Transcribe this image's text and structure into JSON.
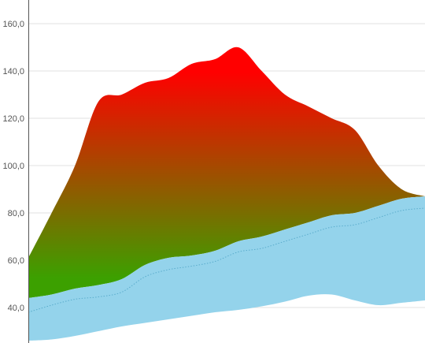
{
  "chart_data": {
    "type": "area",
    "title": "",
    "xlabel": "",
    "ylabel": "",
    "ylim": [
      25,
      170
    ],
    "y_ticks": [
      "40,0",
      "60,0",
      "80,0",
      "100,0",
      "120,0",
      "140,0",
      "160,0"
    ],
    "y_tick_values": [
      40,
      60,
      80,
      100,
      120,
      140,
      160
    ],
    "grid": true,
    "x": [
      0,
      1,
      2,
      3,
      4,
      5,
      6,
      7,
      8,
      9,
      10,
      11,
      12,
      13,
      14,
      15,
      16,
      17
    ],
    "series": [
      {
        "role": "top-area",
        "fill_top": "#ff0000",
        "fill_bottom": "#3ca000",
        "values": [
          61,
          80,
          100,
          127,
          130,
          135,
          137,
          143,
          145,
          150,
          140,
          130,
          125,
          120,
          115,
          100,
          90,
          87
        ]
      },
      {
        "role": "band-upper",
        "fill": "#94d3eb",
        "values": [
          44,
          45.5,
          48,
          49.5,
          52,
          58,
          61,
          62,
          64,
          68,
          70,
          73,
          76,
          79,
          80,
          83,
          86,
          87
        ]
      },
      {
        "role": "band-center",
        "stroke": "#5aaccc",
        "values": [
          38,
          41,
          43.5,
          44.5,
          46.5,
          53,
          56,
          57.5,
          59.5,
          63.5,
          65,
          68,
          71,
          74,
          75,
          78,
          81,
          82
        ]
      },
      {
        "role": "band-lower",
        "values": [
          26,
          26.5,
          28,
          30,
          32,
          33.5,
          35,
          36.5,
          38,
          39,
          40.5,
          42.5,
          45,
          45.5,
          43,
          41,
          42,
          43
        ]
      }
    ],
    "colors": {
      "gradient_top": "#ff0000",
      "gradient_bottom": "#3ca000",
      "band": "#94d3eb",
      "band_line": "#5aaccc",
      "grid": "#e2e2e2"
    }
  }
}
